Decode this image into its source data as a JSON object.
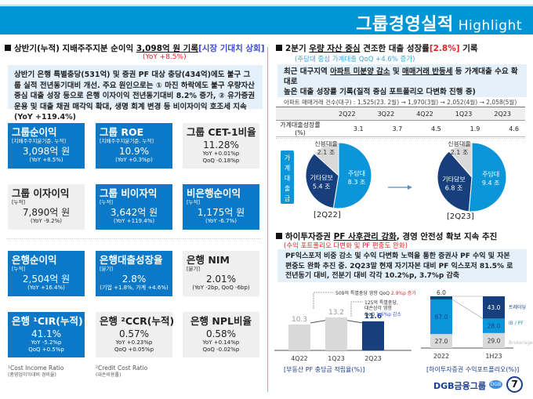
{
  "header": {
    "title": "그룹경영실적",
    "subtitle": "Highlight",
    "color": "#0096d6"
  },
  "left": {
    "section1": {
      "title_pre": "상반기(누적) 지배주주지분 순이익 ",
      "title_highlight": "3,098억 원 기록",
      "title_tag": "[시장 기대치 상회]",
      "sub": "(YoY +8.5%)",
      "note": "상반기 은행 특별충당(531억) 및 증권 PF 대상 충당(434억)에도 불구 그룹 실적 전년동기대비 개선. 주요 원인으로는 ① 마진 하락에도 불구 우량자산 중심 대출 성장 등으로 은행 이자이익 전년동기대비 8.2% 증가, ② 유가증권 운용 및 대출 채권 매각익 확대, 생명 회계 변경 등 비이자이익 호조세 지속 (YoY +119.4%)"
    },
    "cards_group": [
      {
        "title": "그룹순이익",
        "sub": "[지배주주지분기준, 누적]",
        "value": "3,098억 원",
        "note1": "(YoY +8.5%)",
        "note2": "",
        "style": "blue"
      },
      {
        "title": "그룹 ROE",
        "sub": "[지배주주지분기준, 누적]",
        "value": "10.9%",
        "note1": "(YoY +0.3%p)",
        "note2": "",
        "style": "blue"
      },
      {
        "title": "그룹 CET-1비율",
        "sub": "",
        "value": "11.28%",
        "note1": "YoY +0.01%p",
        "note2": "QoQ -0.18%p",
        "style": "gray"
      },
      {
        "title": "그룹 이자이익",
        "sub": "[누적]",
        "value": "7,890억 원",
        "note1": "(YoY -9.2%)",
        "note2": "",
        "style": "gray"
      },
      {
        "title": "그룹 비이자익",
        "sub": "[누적]",
        "value": "3,642억 원",
        "note1": "(YoY +119.4%)",
        "note2": "",
        "style": "blue"
      },
      {
        "title": "비은행순이익",
        "sub": "[누적]",
        "value": "1,175억 원",
        "note1": "(YoY -6.7%)",
        "note2": "",
        "style": "blue"
      }
    ],
    "cards_bank": [
      {
        "title": "은행순이익",
        "sub": "[누적]",
        "value": "2,504억 원",
        "note1": "(YoY +16.4%)",
        "note2": "",
        "style": "blue"
      },
      {
        "title": "은행대출성장율",
        "sub": "[분기]",
        "value": "2.8%",
        "note1": "(기업 +1.8%, 가계 +4.6%)",
        "note2": "",
        "style": "blue"
      },
      {
        "title": "은행 NIM",
        "sub": "[분기]",
        "value": "2.01%",
        "note1": "(YoY -2bp, QoQ -6bp)",
        "note2": "",
        "style": "gray"
      },
      {
        "title": "은행 ¹CIR(누적)",
        "sub": "",
        "value": "41.1%",
        "note1": "YoY -5.2%p",
        "note2": "QoQ +0.5%p",
        "style": "blue"
      },
      {
        "title": "은행 ²CCR(누적)",
        "sub": "",
        "value": "0.57%",
        "note1": "YoY +0.23%p",
        "note2": "QoQ +0.05%p",
        "style": "gray"
      },
      {
        "title": "은행 NPL비율",
        "sub": "",
        "value": "0.58%",
        "note1": "YoY +0.14%p",
        "note2": "QoQ -0.02%p",
        "style": "gray"
      }
    ],
    "footnotes": [
      {
        "main": "¹Cost Income Ratio",
        "sub": "(총영업이익대비 경비율)"
      },
      {
        "main": "²Credit Cost Ratio",
        "sub": "(대손비용률)"
      }
    ]
  },
  "right": {
    "section2": {
      "title_pre": "2분기 ",
      "title_u": "우량 자산 중심",
      "title_mid": " 견조한 대출 성장률",
      "title_tag": "[2.8%]",
      "title_post": " 기록",
      "sub": "(주담대 중심 가계대출 QoQ +4.6% 증가)",
      "note_l1_pre": "최근 대구지역 ",
      "note_l1_u1": "아파트 미분양 감소",
      "note_l1_mid": " 및 ",
      "note_l1_u2": "매매거래 반등세",
      "note_l1_post": " 등 가계대출 수요 확대로",
      "note_l2": "높은 대출 성장률 기록(질적 중심 포트폴리오 다변화 진행 중)",
      "note_l3": "아파트 매매거래 건수(대구) : 1,525(23. 2월) → 1,970(3월) → 2,052(4월) → 2,058(5월)"
    },
    "table": {
      "headers": [
        "",
        "2Q22",
        "3Q22",
        "4Q22",
        "1Q23",
        "2Q23"
      ],
      "row_label": "가계대출성장률(%)",
      "values": [
        "3.1",
        "3.7",
        "4.5",
        "1.9",
        "4.6"
      ]
    },
    "household_label": "가계대출금",
    "pies": [
      {
        "caption": "[2Q22]",
        "slices": [
          {
            "label": "주담대",
            "value": "8.3 조",
            "num": 8.3,
            "color": "#0b96da"
          },
          {
            "label": "기타담보",
            "value": "5.4 조",
            "num": 5.4,
            "color": "#173f7e"
          },
          {
            "label": "신용대출",
            "value": "2.1 조",
            "num": 2.1,
            "color": "#d9d9d9"
          }
        ]
      },
      {
        "caption": "[2Q23]",
        "slices": [
          {
            "label": "주담대",
            "value": "9.4 조",
            "num": 9.4,
            "color": "#0b96da"
          },
          {
            "label": "기타담보",
            "value": "6.8 조",
            "num": 6.8,
            "color": "#173f7e"
          },
          {
            "label": "신용대출",
            "value": "2.1 조",
            "num": 2.1,
            "color": "#d9d9d9"
          }
        ]
      }
    ],
    "section3": {
      "title_pre": "하이투자증권 ",
      "title_u": "PF 사후관리 강화",
      "title_post": ", 경영 안전성 확보 지속 추진",
      "sub": "(수익 포트폴리오 다변화 및 PF 편중도 완화)",
      "note": "PF익스포저 비중 감소 및 수익 다변화 노력을 통한 증권사 PF 수익 및 자본 편중도 완화 추진 중. 2Q23말 현재 자기자본 대비 PF 익스포저 81.5% 로 전년동기 대비, 전분기 대비 각각 10.2%p, 3.7%p 감축"
    }
  },
  "chart_data": [
    {
      "type": "bar",
      "title": "[부동산 PF 충당금 적립율(%)]",
      "categories": [
        "4Q22",
        "1Q23",
        "2Q23"
      ],
      "values": [
        10.3,
        13.2,
        11.6
      ],
      "colors": [
        "#d9d9d9",
        "#d9d9d9",
        "#173f7e"
      ],
      "annotations": [
        {
          "text_pre": "509억 특별충당 영향 QoQ ",
          "text_hl": "2.9%p 증가",
          "hl_color": "#e0262a"
        },
        {
          "text_l1": "125억 특별충당,",
          "text_l2": "대손상각 영향",
          "text_pre": "QoQ ",
          "text_hl": "1.6%p 감소",
          "hl_color": "#3a4bd8"
        }
      ],
      "xlabel": "",
      "ylabel": ""
    },
    {
      "type": "bar",
      "stacked": true,
      "title": "[하이투자증권 수익포트폴리오(%)]",
      "categories": [
        "2022",
        "1H23"
      ],
      "series": [
        {
          "name": "Brokerage",
          "values": [
            27.0,
            29.0
          ],
          "color": "#d9d9d9"
        },
        {
          "name": "IB / PF",
          "values": [
            67.0,
            28.0
          ],
          "color": "#0b96da"
        },
        {
          "name": "트레이딩",
          "values": [
            6.0,
            43.0
          ],
          "color": "#173f7e"
        }
      ],
      "ylim": [
        0,
        100
      ]
    },
    {
      "type": "pie",
      "title": "[2Q22]",
      "labels": [
        "주담대",
        "기타담보",
        "신용대출"
      ],
      "values": [
        8.3,
        5.4,
        2.1
      ],
      "unit": "조"
    },
    {
      "type": "pie",
      "title": "[2Q23]",
      "labels": [
        "주담대",
        "기타담보",
        "신용대출"
      ],
      "values": [
        9.4,
        6.8,
        2.1
      ],
      "unit": "조"
    },
    {
      "type": "table",
      "title": "가계대출성장률(%)",
      "categories": [
        "2Q22",
        "3Q22",
        "4Q22",
        "1Q23",
        "2Q23"
      ],
      "values": [
        3.1,
        3.7,
        4.5,
        1.9,
        4.6
      ]
    }
  ],
  "footer": {
    "brand": "DGB금융그룹",
    "badge": "DGB",
    "page": "7"
  }
}
